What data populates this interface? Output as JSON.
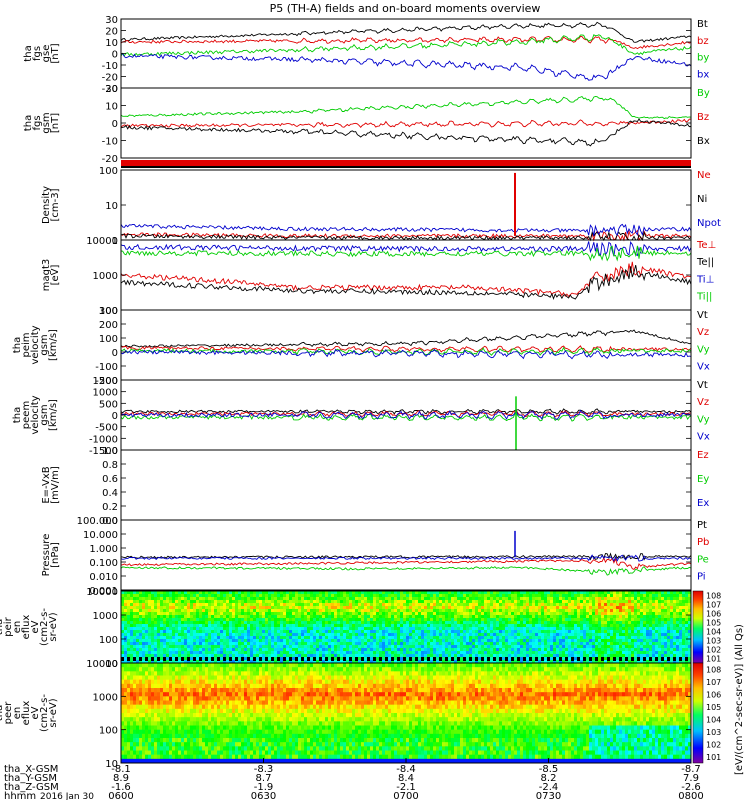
{
  "title": "P5 (TH-A) fields and on-board moments overview",
  "colors": {
    "black": "#000000",
    "red": "#e00000",
    "green": "#00cc00",
    "blue": "#0000cc",
    "cyan": "#00a0c0"
  },
  "colorbar": {
    "label": "[eV/(cm^2-sec-sr-eV)] (All Qs)",
    "ticks_upper": [
      "10^8",
      "10^7",
      "10^6",
      "10^5",
      "10^4",
      "10^3",
      "10^2",
      "10^1"
    ],
    "ticks_lower": [
      "10^8",
      "10^7",
      "10^6",
      "10^5",
      "10^4",
      "10^3",
      "10^2",
      "10^1"
    ]
  },
  "footer": {
    "row_labels": [
      "tha_X-GSM",
      "tha_Y-GSM",
      "tha_Z-GSM",
      "hhmm",
      "2016 Jan 30"
    ],
    "x_gsm": [
      "-8.1",
      "-8.3",
      "-8.4",
      "-8.5",
      "-8.7"
    ],
    "y_gsm": [
      "8.9",
      "8.7",
      "8.4",
      "8.2",
      "7.9"
    ],
    "z_gsm": [
      "-1.6",
      "-1.9",
      "-2.1",
      "-2.4",
      "-2.6"
    ],
    "hhmm": [
      "0600",
      "0630",
      "0700",
      "0730",
      "0800"
    ]
  },
  "chart_data": [
    {
      "type": "line",
      "id": "fgs_gse",
      "ylabel": [
        "tha",
        "fgs",
        "gse",
        "[nT]"
      ],
      "yticks": [
        "30",
        "20",
        "10",
        "0",
        "-10",
        "-20",
        "-30"
      ],
      "ylim": [
        -30,
        30
      ],
      "series": [
        {
          "name": "Bt",
          "color": "black",
          "trend": [
            [
              0,
              12
            ],
            [
              0.35,
              18
            ],
            [
              0.7,
              24
            ],
            [
              0.85,
              25
            ],
            [
              0.9,
              10
            ],
            [
              1,
              15
            ]
          ]
        },
        {
          "name": "bz",
          "color": "red",
          "trend": [
            [
              0,
              10
            ],
            [
              0.3,
              11
            ],
            [
              0.7,
              12
            ],
            [
              0.86,
              12
            ],
            [
              0.9,
              5
            ],
            [
              1,
              10
            ]
          ]
        },
        {
          "name": "by",
          "color": "green",
          "trend": [
            [
              0,
              -1
            ],
            [
              0.3,
              3
            ],
            [
              0.7,
              10
            ],
            [
              0.85,
              15
            ],
            [
              0.9,
              0
            ],
            [
              1,
              5
            ]
          ]
        },
        {
          "name": "bx",
          "color": "blue",
          "trend": [
            [
              0,
              -2
            ],
            [
              0.3,
              -5
            ],
            [
              0.7,
              -12
            ],
            [
              0.84,
              -22
            ],
            [
              0.9,
              -3
            ],
            [
              1,
              -10
            ]
          ]
        }
      ]
    },
    {
      "type": "line",
      "id": "fgs_gsm",
      "ylabel": [
        "tha",
        "fgs",
        "gsm",
        "[nT]"
      ],
      "yticks": [
        "20",
        "10",
        "0",
        "-10",
        "-20"
      ],
      "ylim": [
        -25,
        25
      ],
      "series": [
        {
          "name": "By",
          "color": "green",
          "trend": [
            [
              0,
              5
            ],
            [
              0.3,
              8
            ],
            [
              0.7,
              15
            ],
            [
              0.86,
              18
            ],
            [
              0.9,
              4
            ],
            [
              1,
              4
            ]
          ]
        },
        {
          "name": "Bz",
          "color": "red",
          "trend": [
            [
              0,
              -2
            ],
            [
              0.5,
              -1
            ],
            [
              0.9,
              0
            ],
            [
              1,
              2
            ]
          ]
        },
        {
          "name": "Bx",
          "color": "black",
          "trend": [
            [
              0,
              -3
            ],
            [
              0.3,
              -6
            ],
            [
              0.7,
              -12
            ],
            [
              0.84,
              -14
            ],
            [
              0.9,
              2
            ],
            [
              1,
              -2
            ]
          ]
        }
      ]
    },
    {
      "type": "line",
      "id": "density",
      "ylabel": [
        "Density",
        "[cm-3]"
      ],
      "yticks": [
        "100",
        "10",
        "1"
      ],
      "ylim": [
        0.2,
        200
      ],
      "log": true,
      "series": [
        {
          "name": "Ne",
          "color": "red",
          "trend": [
            [
              0,
              0.35
            ],
            [
              0.3,
              0.3
            ],
            [
              0.9,
              0.3
            ],
            [
              1,
              0.3
            ]
          ]
        },
        {
          "name": "Ni",
          "color": "black",
          "trend": [
            [
              0,
              0.3
            ],
            [
              0.3,
              0.25
            ],
            [
              0.9,
              0.25
            ],
            [
              1,
              0.25
            ]
          ]
        },
        {
          "name": "Npot",
          "color": "blue",
          "trend": [
            [
              0,
              0.8
            ],
            [
              0.3,
              0.6
            ],
            [
              0.8,
              0.5
            ],
            [
              1,
              0.6
            ]
          ]
        }
      ],
      "annotation": "spike ~100 cm-3 near 07:25"
    },
    {
      "type": "line",
      "id": "temperature",
      "ylabel": [
        "magt3",
        "[eV]"
      ],
      "yticks": [
        "10000",
        "1000",
        "100"
      ],
      "ylim": [
        100,
        15000
      ],
      "log": true,
      "series": [
        {
          "name": "Te⊥",
          "color": "red",
          "trend": [
            [
              0,
              1200
            ],
            [
              0.3,
              500
            ],
            [
              0.6,
              500
            ],
            [
              0.8,
              300
            ],
            [
              0.9,
              2000
            ],
            [
              1,
              1000
            ]
          ]
        },
        {
          "name": "Te||",
          "color": "black",
          "trend": [
            [
              0,
              700
            ],
            [
              0.3,
              400
            ],
            [
              0.6,
              350
            ],
            [
              0.8,
              250
            ],
            [
              0.9,
              1500
            ],
            [
              1,
              700
            ]
          ]
        },
        {
          "name": "Ti⊥",
          "color": "blue",
          "trend": [
            [
              0,
              9000
            ],
            [
              0.5,
              8000
            ],
            [
              1,
              8000
            ]
          ]
        },
        {
          "name": "Ti||",
          "color": "green",
          "trend": [
            [
              0,
              6000
            ],
            [
              0.5,
              5500
            ],
            [
              1,
              6000
            ]
          ]
        }
      ]
    },
    {
      "type": "line",
      "id": "peim_velocity",
      "ylabel": [
        "tha",
        "peim",
        "velocity",
        "gsm",
        "[km/s]"
      ],
      "yticks": [
        "300",
        "200",
        "100",
        "0",
        "-100",
        "-200"
      ],
      "ylim": [
        -200,
        300
      ],
      "series": [
        {
          "name": "Vt",
          "color": "black",
          "trend": [
            [
              0,
              40
            ],
            [
              0.5,
              60
            ],
            [
              0.9,
              150
            ],
            [
              1,
              60
            ]
          ]
        },
        {
          "name": "Vz",
          "color": "red",
          "trend": [
            [
              0,
              30
            ],
            [
              0.5,
              20
            ],
            [
              1,
              20
            ]
          ]
        },
        {
          "name": "Vy",
          "color": "green",
          "trend": [
            [
              0,
              10
            ],
            [
              0.5,
              0
            ],
            [
              1,
              10
            ]
          ]
        },
        {
          "name": "Vx",
          "color": "blue",
          "trend": [
            [
              0,
              0
            ],
            [
              0.5,
              -10
            ],
            [
              1,
              -20
            ]
          ]
        }
      ]
    },
    {
      "type": "line",
      "id": "peem_velocity",
      "ylabel": [
        "tha",
        "peem",
        "velocity",
        "gsm",
        "[km/s]"
      ],
      "yticks": [
        "1500",
        "1000",
        "500",
        "0",
        "-500",
        "-1000",
        "-1500"
      ],
      "ylim": [
        -1500,
        1500
      ],
      "series": [
        {
          "name": "Vt",
          "color": "black",
          "trend": [
            [
              0,
              150
            ],
            [
              1,
              150
            ]
          ]
        },
        {
          "name": "Vz",
          "color": "red",
          "trend": [
            [
              0,
              50
            ],
            [
              1,
              50
            ]
          ]
        },
        {
          "name": "Vy",
          "color": "green",
          "trend": [
            [
              0,
              -100
            ],
            [
              1,
              -100
            ]
          ]
        },
        {
          "name": "Vx",
          "color": "blue",
          "trend": [
            [
              0,
              0
            ],
            [
              1,
              0
            ]
          ]
        }
      ]
    },
    {
      "type": "line",
      "id": "efield",
      "ylabel": [
        "E=-VxB",
        "[mV/m]"
      ],
      "yticks": [
        "1.0",
        "0.8",
        "0.6",
        "0.4",
        "0.2",
        "0.0"
      ],
      "ylim": [
        0,
        1
      ],
      "series": [
        {
          "name": "Ez",
          "color": "red"
        },
        {
          "name": "Ey",
          "color": "green"
        },
        {
          "name": "Ex",
          "color": "blue"
        }
      ]
    },
    {
      "type": "line",
      "id": "pressure",
      "ylabel": [
        "Pressure",
        "[nPa]"
      ],
      "yticks": [
        "100.000",
        "10.000",
        "1.000",
        "0.100",
        "0.010",
        "0.001"
      ],
      "ylim": [
        0.001,
        200
      ],
      "log": true,
      "series": [
        {
          "name": "Pt",
          "color": "black",
          "trend": [
            [
              0,
              0.3
            ],
            [
              1,
              0.35
            ]
          ]
        },
        {
          "name": "Pb",
          "color": "red",
          "trend": [
            [
              0,
              0.08
            ],
            [
              0.3,
              0.1
            ],
            [
              0.7,
              0.15
            ],
            [
              0.85,
              0.18
            ],
            [
              0.9,
              0.05
            ],
            [
              1,
              0.1
            ]
          ]
        },
        {
          "name": "Pe",
          "color": "green",
          "trend": [
            [
              0,
              0.05
            ],
            [
              0.4,
              0.04
            ],
            [
              0.7,
              0.05
            ],
            [
              0.85,
              0.02
            ],
            [
              1,
              0.05
            ]
          ]
        },
        {
          "name": "Pi",
          "color": "blue",
          "trend": [
            [
              0,
              0.25
            ],
            [
              1,
              0.25
            ]
          ]
        }
      ]
    },
    {
      "type": "heatmap",
      "id": "peir_en_eflux",
      "ylabel": [
        "tha",
        "peir",
        "en",
        "eflux",
        "eV",
        "(cm2-s-",
        "sr-eV)"
      ],
      "yticks": [
        "10000",
        "1000",
        "100",
        "10"
      ],
      "ylim": [
        5,
        30000
      ],
      "log": true
    },
    {
      "type": "heatmap",
      "id": "peer_en_eflux",
      "ylabel": [
        "tha",
        "peer",
        "en",
        "eflux",
        "eV",
        "(cm2-s-",
        "sr-eV)"
      ],
      "yticks": [
        "10000",
        "1000",
        "100",
        "10"
      ],
      "ylim": [
        5,
        30000
      ],
      "log": true
    }
  ]
}
